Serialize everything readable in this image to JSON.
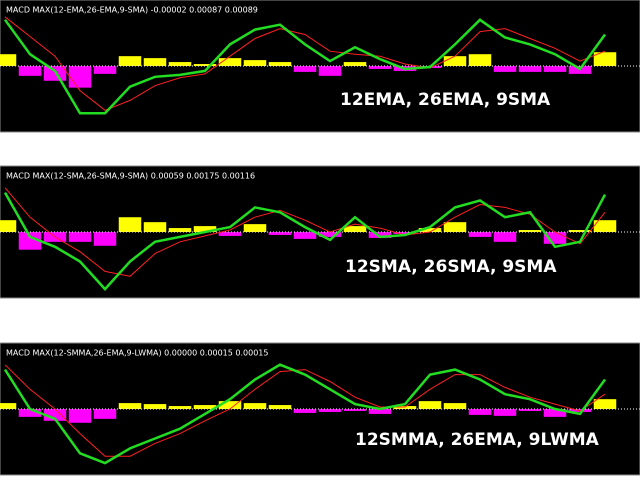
{
  "chart_data": [
    {
      "type": "macd",
      "title": "MACD MAX(12-EMA,26-EMA,9-SMA) -0.00002 0.00087 0.00089",
      "annotation": "12EMA, 26EMA, 9SMA",
      "ylim": [
        -62,
        62
      ],
      "histogram": {
        "values": [
          12,
          -10,
          -15,
          -22,
          -8,
          10,
          8,
          4,
          2,
          8,
          6,
          4,
          -6,
          -10,
          4,
          -3,
          -5,
          -2,
          10,
          12,
          -6,
          -6,
          -6,
          -8,
          14
        ],
        "pos_color": "#ffff00",
        "neg_color": "#ff00ff"
      },
      "series": [
        {
          "color": "#ff2020",
          "values": [
            50,
            30,
            10,
            -25,
            -45,
            -35,
            -20,
            -12,
            -8,
            10,
            28,
            38,
            32,
            15,
            12,
            10,
            2,
            -2,
            10,
            35,
            38,
            28,
            18,
            5,
            15
          ]
        },
        {
          "color": "#22dd22",
          "values": [
            47,
            12,
            -5,
            -48,
            -48,
            -21,
            -11,
            -9,
            -5,
            22,
            37,
            42,
            22,
            5,
            19,
            7,
            -3,
            -1,
            22,
            47,
            29,
            22,
            12,
            -3,
            32
          ]
        }
      ]
    },
    {
      "type": "macd",
      "title": "MACD MAX(12-SMA,26-SMA,9-SMA) 0.00059 0.00175 0.00116",
      "annotation": "12SMA, 26SMA, 9SMA",
      "ylim": [
        -62,
        62
      ],
      "histogram": {
        "values": [
          12,
          -18,
          -10,
          -10,
          -14,
          15,
          10,
          4,
          6,
          -4,
          8,
          -3,
          -7,
          -5,
          6,
          -6,
          -2,
          4,
          10,
          -5,
          -10,
          2,
          -12,
          2,
          12
        ],
        "pos_color": "#ffff00",
        "neg_color": "#ff00ff"
      },
      "series": [
        {
          "color": "#ff2020",
          "values": [
            45,
            15,
            -5,
            -20,
            -40,
            -45,
            -22,
            -10,
            -4,
            2,
            15,
            22,
            12,
            0,
            8,
            4,
            -3,
            0,
            15,
            28,
            25,
            18,
            0,
            -12,
            20
          ]
        },
        {
          "color": "#22dd22",
          "values": [
            40,
            -5,
            -15,
            -30,
            -58,
            -30,
            -10,
            -5,
            0,
            5,
            25,
            20,
            5,
            -8,
            15,
            -5,
            -3,
            5,
            25,
            32,
            15,
            20,
            -15,
            -10,
            38
          ]
        }
      ]
    },
    {
      "type": "macd",
      "title": "MACD MAX(12-SMMA,26-EMA,9-LWMA) 0.00000 0.00015 0.00015",
      "annotation": "12SMMA, 26EMA, 9LWMA",
      "ylim": [
        -62,
        62
      ],
      "histogram": {
        "values": [
          6,
          -8,
          -12,
          -14,
          -10,
          6,
          5,
          3,
          4,
          8,
          6,
          4,
          -4,
          -3,
          -2,
          -5,
          3,
          8,
          6,
          -6,
          -7,
          -2,
          -8,
          -3,
          10
        ],
        "pos_color": "#ffff00",
        "neg_color": "#ff00ff"
      },
      "series": [
        {
          "color": "#ff2020",
          "values": [
            45,
            20,
            0,
            -25,
            -48,
            -48,
            -35,
            -25,
            -12,
            0,
            20,
            38,
            40,
            28,
            12,
            2,
            2,
            20,
            35,
            35,
            22,
            12,
            5,
            -2,
            15
          ]
        },
        {
          "color": "#22dd22",
          "values": [
            40,
            0,
            -10,
            -45,
            -55,
            -40,
            -30,
            -20,
            -5,
            10,
            30,
            45,
            35,
            20,
            5,
            0,
            5,
            35,
            40,
            30,
            15,
            10,
            0,
            -5,
            30
          ]
        }
      ]
    }
  ]
}
